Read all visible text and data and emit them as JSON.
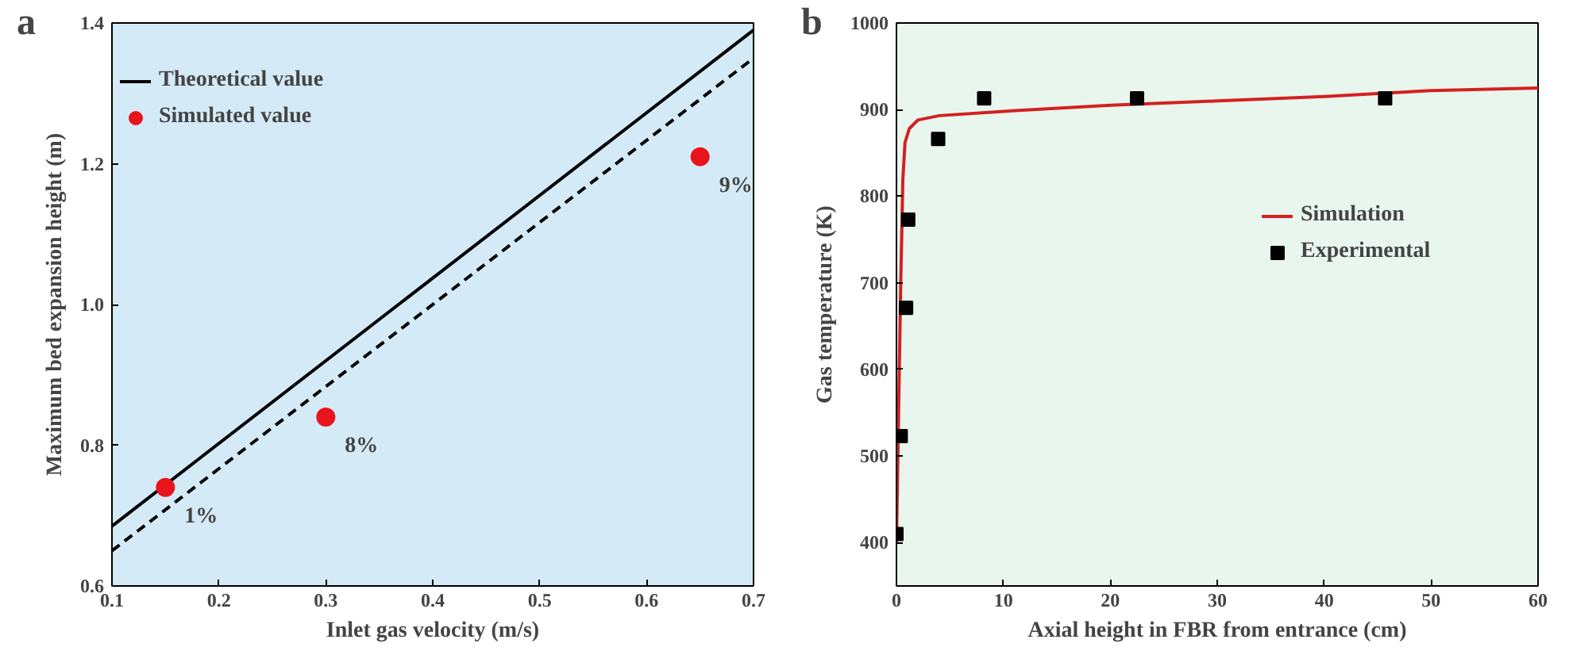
{
  "chart_data": [
    {
      "type": "line",
      "xlabel": "Inlet gas velocity (m/s)",
      "ylabel": "Maximum bed expansion height (m)",
      "annotations": [
        "a",
        {
          "text": "1%",
          "x": 0.15,
          "y": 0.74
        },
        {
          "text": "8%",
          "x": 0.3,
          "y": 0.84
        },
        {
          "text": "9%",
          "x": 0.65,
          "y": 1.21
        }
      ],
      "xlim": [
        0.1,
        0.7
      ],
      "ylim": [
        0.6,
        1.4
      ],
      "xticks": [
        0.1,
        0.2,
        0.3,
        0.4,
        0.5,
        0.6,
        0.7
      ],
      "yticks": [
        0.6,
        0.8,
        {
          "value": 1.0,
          "label": "1.0"
        },
        1.2,
        1.4
      ],
      "legend": "top left",
      "grid": false,
      "series": [
        {
          "name": "Theoretical value",
          "color": "#000000",
          "line_style": "solid",
          "x": [
            0.1,
            0.7
          ],
          "values": [
            0.685,
            1.39
          ]
        },
        {
          "color": "#000000",
          "line_style": "dashed",
          "x": [
            0.1,
            0.7
          ],
          "values": [
            0.65,
            1.35
          ]
        },
        {
          "name": "Simulated value",
          "type": "scatter",
          "marker": "circle",
          "color": "#e8141c",
          "x": [
            0.15,
            0.3,
            0.65
          ],
          "values": [
            0.74,
            0.84,
            1.21
          ]
        }
      ]
    },
    {
      "type": "line",
      "xlabel": "Axial height in FBR from entrance (cm)",
      "ylabel": "Gas temperature (K)",
      "annotations": [
        "b"
      ],
      "xlim": [
        0,
        60
      ],
      "ylim": [
        350,
        1000
      ],
      "xticks": [
        0,
        10,
        20,
        30,
        40,
        50,
        60
      ],
      "yticks": [
        400,
        500,
        600,
        700,
        800,
        900,
        1000
      ],
      "legend": "top right",
      "grid": false,
      "series": [
        {
          "name": "Simulation",
          "color": "#d42020",
          "line_style": "solid",
          "x": [
            0,
            0.2,
            0.4,
            0.6,
            0.8,
            1.2,
            2,
            4,
            10,
            20,
            30,
            40,
            50,
            60
          ],
          "values": [
            400,
            550,
            700,
            820,
            862,
            878,
            888,
            893,
            898,
            905,
            910,
            915,
            922,
            925
          ]
        },
        {
          "name": "Experimental",
          "type": "scatter",
          "marker": "square",
          "color": "#000000",
          "x": [
            0,
            0.4,
            0.9,
            1.1,
            3.9,
            8.2,
            22.5,
            45.7
          ],
          "values": [
            410,
            523,
            671,
            773,
            866,
            913,
            913,
            913
          ]
        }
      ]
    }
  ]
}
